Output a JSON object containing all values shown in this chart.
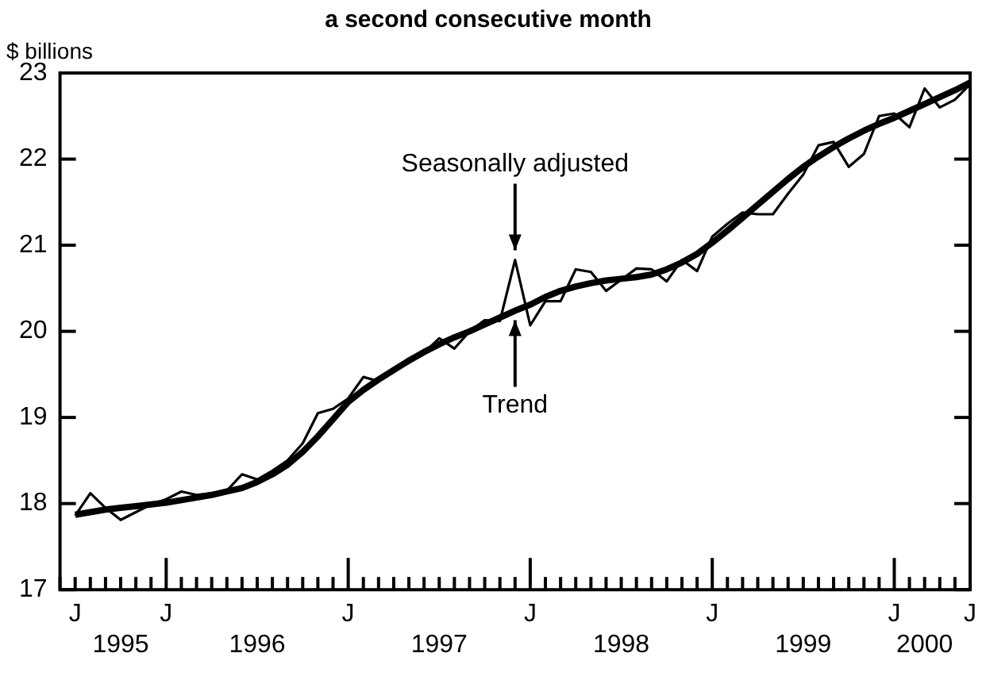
{
  "chart_data": {
    "type": "line",
    "title": "a second consecutive month",
    "ylabel": "$ billions",
    "categories": [
      null,
      "J",
      null,
      null,
      "\n1995",
      null,
      null,
      "J",
      null,
      null,
      null,
      null,
      null,
      "\n1996",
      null,
      null,
      null,
      null,
      null,
      "J",
      null,
      null,
      null,
      null,
      null,
      "\n1997",
      null,
      null,
      null,
      null,
      null,
      "J",
      null,
      null,
      null,
      null,
      null,
      "\n1998",
      null,
      null,
      null,
      null,
      null,
      "J",
      null,
      null,
      null,
      null,
      null,
      "\n1999",
      null,
      null,
      null,
      null,
      null,
      "J",
      null,
      "\n2000",
      null,
      null,
      "J"
    ],
    "series": [
      {
        "color": "#000000",
        "values": [
          null,
          17.86,
          18.12,
          17.95,
          17.81,
          17.9,
          17.99,
          18.05,
          18.14,
          18.1,
          18.12,
          18.15,
          18.34,
          18.28,
          18.38,
          18.5,
          18.7,
          19.05,
          19.1,
          19.22,
          19.47,
          19.42,
          19.55,
          19.68,
          19.75,
          19.92,
          19.8,
          20.0,
          20.13,
          20.12,
          20.83,
          20.07,
          20.35,
          20.35,
          20.72,
          20.69,
          20.47,
          20.6,
          20.73,
          20.72,
          20.58,
          20.83,
          20.7,
          21.1,
          21.25,
          21.38,
          21.36,
          21.36,
          21.6,
          21.82,
          22.16,
          22.2,
          21.91,
          22.06,
          22.5,
          22.53,
          22.37,
          22.82,
          22.6,
          22.69,
          22.87
        ]
      },
      {
        "color": "#000000",
        "values": [
          null,
          17.87,
          17.9,
          17.93,
          17.95,
          17.97,
          17.99,
          18.01,
          18.04,
          18.07,
          18.1,
          18.14,
          18.18,
          18.25,
          18.34,
          18.45,
          18.6,
          18.78,
          18.98,
          19.18,
          19.32,
          19.44,
          19.55,
          19.66,
          19.76,
          19.85,
          19.93,
          20.0,
          20.08,
          20.16,
          20.24,
          20.31,
          20.4,
          20.47,
          20.52,
          20.56,
          20.59,
          20.61,
          20.63,
          20.66,
          20.72,
          20.8,
          20.9,
          21.03,
          21.17,
          21.32,
          21.47,
          21.62,
          21.77,
          21.91,
          22.03,
          22.14,
          22.24,
          22.33,
          22.41,
          22.48,
          22.56,
          22.64,
          22.72,
          22.8,
          22.89
        ]
      }
    ],
    "annotations": [
      {
        "text": "Seasonally adjusted",
        "y": 20.83
      },
      {
        "text": "Trend",
        "y": 20.24
      }
    ],
    "ylim": [
      17,
      23
    ],
    "yticks": [
      17,
      18,
      19,
      20,
      21,
      22,
      23
    ],
    "grid": false,
    "legend": false
  }
}
